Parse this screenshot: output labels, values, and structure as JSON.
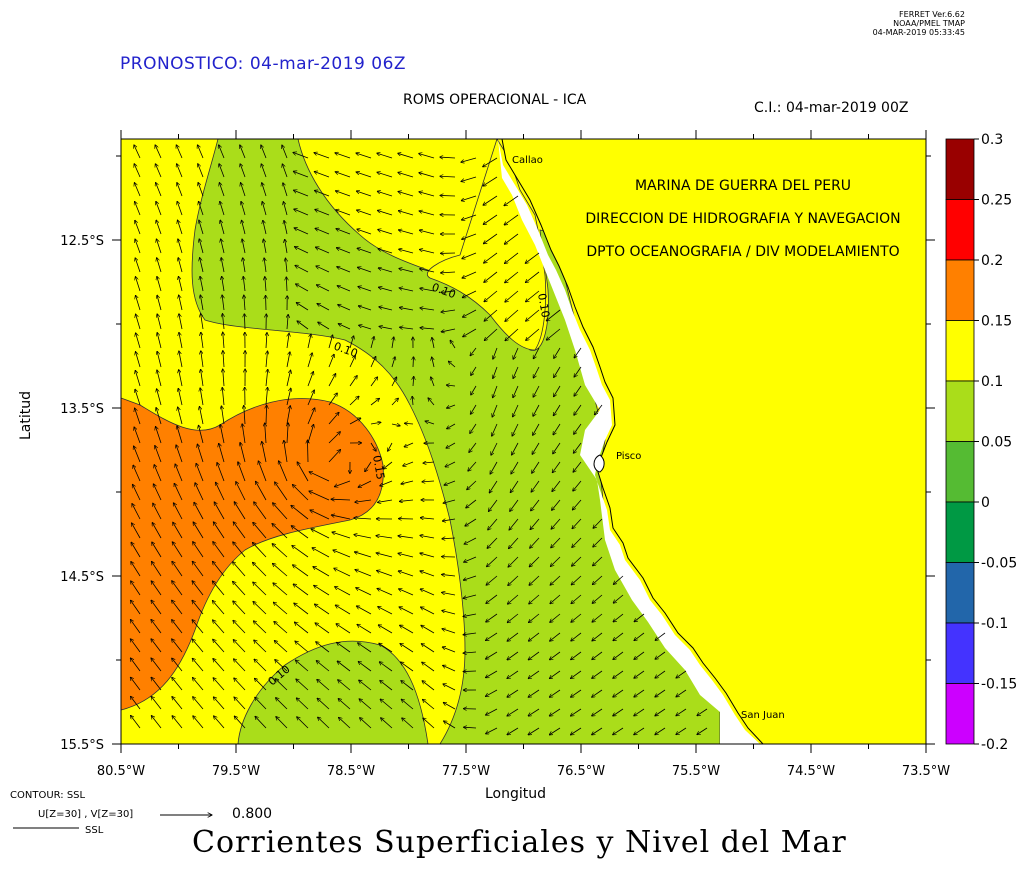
{
  "header": {
    "ferret_lines": [
      "FERRET  Ver.6.62",
      "NOAA/PMEL TMAP",
      "04-MAR-2019 05:33:45"
    ],
    "forecast": "PRONOSTICO: 04-mar-2019 06Z",
    "subtitle": "ROMS OPERACIONAL - ICA",
    "initial_condition": "C.I.: 04-mar-2019 00Z"
  },
  "map": {
    "xlabel": "Longitud",
    "ylabel": "Latitud",
    "lon_ticks": [
      "80.5°W",
      "79.5°W",
      "78.5°W",
      "77.5°W",
      "76.5°W",
      "75.5°W",
      "74.5°W",
      "73.5°W"
    ],
    "lat_ticks": [
      "12.5°S",
      "13.5°S",
      "14.5°S",
      "15.5°S"
    ],
    "institution_lines": [
      "MARINA DE GUERRA DEL PERU",
      "DIRECCION DE HIDROGRAFIA Y NAVEGACION",
      "DPTO OCEANOGRAFIA / DIV MODELAMIENTO"
    ],
    "places": [
      "Callao",
      "Pisco",
      "San Juan"
    ],
    "contour_labels": [
      "0.10",
      "0.10",
      "0.10",
      "0.15",
      "0.10"
    ],
    "colors": {
      "land": "#ffff00",
      "band_0_15_0_2": "#ff8000",
      "band_0_1_0_15": "#ffff00",
      "band_0_05_0_1": "#aadd1a"
    }
  },
  "colorbar": {
    "levels": [
      "0.3",
      "0.25",
      "0.2",
      "0.15",
      "0.1",
      "0.05",
      "0",
      "-0.05",
      "-0.1",
      "-0.15",
      "-0.2"
    ],
    "colors": [
      "#990000",
      "#ff0000",
      "#ff8000",
      "#ffff00",
      "#aadd1a",
      "#55bb33",
      "#009944",
      "#2266aa",
      "#4433ff",
      "#cc00ff"
    ]
  },
  "footer": {
    "contour_line": "CONTOUR: SSL",
    "vector_line": "U[Z=30] , V[Z=30]",
    "vector_scale": "0.800",
    "ssl_line": "SSL",
    "title": "Corrientes Superficiales y Nivel del Mar"
  }
}
